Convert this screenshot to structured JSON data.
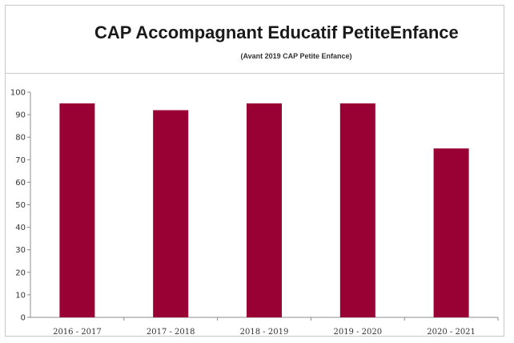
{
  "chart_data": {
    "type": "bar",
    "title": "CAP Accompagnant Educatif PetiteEnfance",
    "subtitle": "(Avant 2019 CAP Petite Enfance)",
    "categories": [
      "2016 - 2017",
      "2017 - 2018",
      "2018 - 2019",
      "2019 - 2020",
      "2020 - 2021"
    ],
    "values": [
      95,
      92,
      95,
      95,
      75
    ],
    "ylim": [
      0,
      100
    ],
    "yticks": [
      0,
      10,
      20,
      30,
      40,
      50,
      60,
      70,
      80,
      90,
      100
    ],
    "xlabel": "",
    "ylabel": "",
    "grid": false,
    "legend": "none",
    "bar_color": "#990033"
  }
}
